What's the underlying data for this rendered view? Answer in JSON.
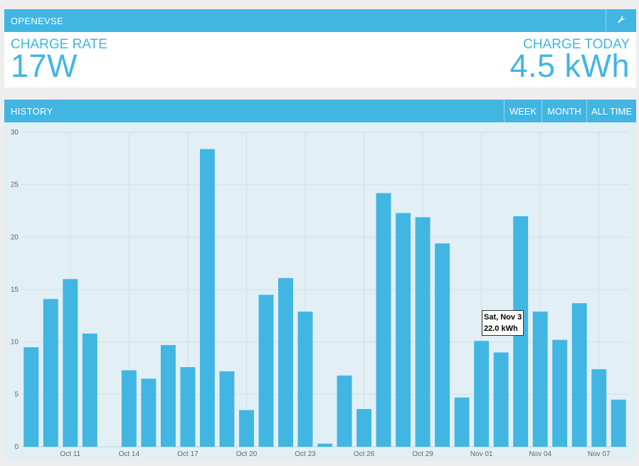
{
  "app": {
    "title": "OPENEVSE",
    "settings_icon": "wrench-icon"
  },
  "stats": {
    "charge_rate_label": "CHARGE RATE",
    "charge_rate_value": "17W",
    "charge_today_label": "CHARGE TODAY",
    "charge_today_value": "4.5 kWh"
  },
  "history": {
    "title": "HISTORY",
    "buttons": {
      "week": "WEEK",
      "month": "MONTH",
      "all_time": "ALL TIME"
    },
    "tooltip": {
      "date": "Sat, Nov 3",
      "value": "22.0 kWh"
    }
  },
  "chart_data": {
    "type": "bar",
    "color": "#41b6e3",
    "ylim": [
      0,
      30
    ],
    "y_ticks": [
      0,
      5,
      10,
      15,
      20,
      25,
      30
    ],
    "x_tick_labels": [
      "Oct 11",
      "Oct 14",
      "Oct 17",
      "Oct 20",
      "Oct 23",
      "Oct 26",
      "Oct 29",
      "Nov 01",
      "Nov 04",
      "Nov 07"
    ],
    "grid": true,
    "categories": [
      "Oct 9",
      "Oct 10",
      "Oct 11",
      "Oct 12",
      "Oct 13",
      "Oct 14",
      "Oct 15",
      "Oct 16",
      "Oct 17",
      "Oct 18",
      "Oct 19",
      "Oct 20",
      "Oct 21",
      "Oct 22",
      "Oct 23",
      "Oct 24",
      "Oct 25",
      "Oct 26",
      "Oct 27",
      "Oct 28",
      "Oct 29",
      "Oct 30",
      "Oct 31",
      "Nov 01",
      "Nov 02",
      "Nov 03",
      "Nov 04",
      "Nov 05",
      "Nov 06",
      "Nov 07",
      "Nov 08"
    ],
    "values": [
      9.5,
      14.1,
      16.0,
      10.8,
      0,
      7.3,
      6.5,
      9.7,
      7.6,
      28.4,
      7.2,
      3.5,
      14.5,
      16.1,
      12.9,
      0.3,
      6.8,
      3.6,
      24.2,
      22.3,
      21.9,
      19.4,
      4.7,
      10.1,
      9.0,
      22.0,
      12.9,
      10.2,
      13.7,
      7.4,
      4.5
    ]
  }
}
